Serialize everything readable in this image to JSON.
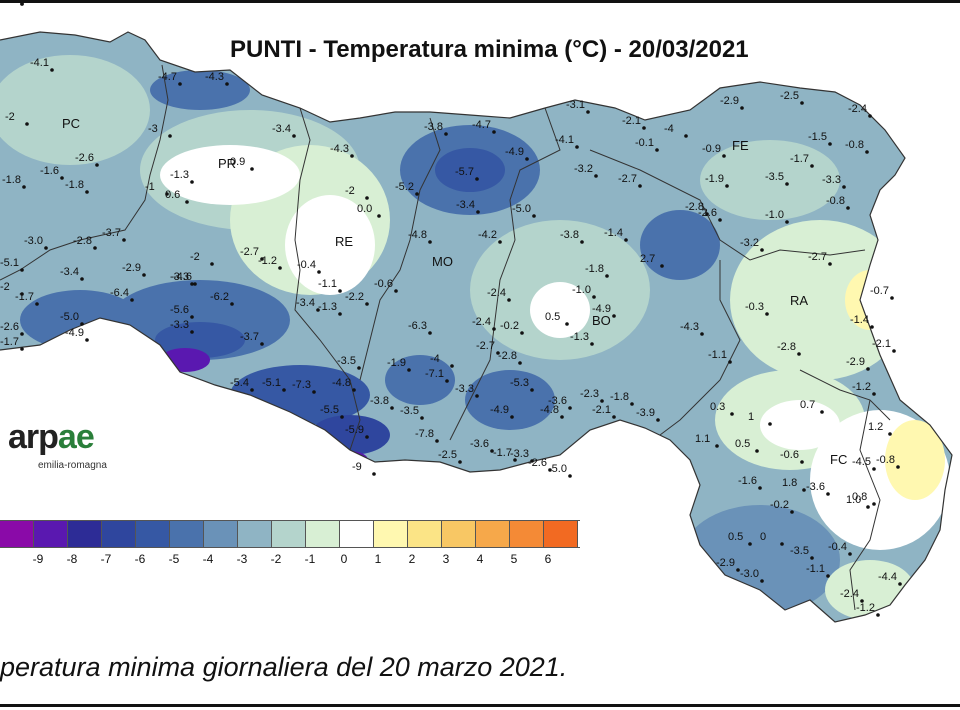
{
  "title": "PUNTI - Temperatura minima (°C) - 20/03/2021",
  "caption": "peratura minima giornaliera del 20 marzo 2021.",
  "logo": {
    "word_main": "arp",
    "word_accent": "ae",
    "subtitle": "emilia-romagna"
  },
  "legend": {
    "colors": [
      "#8a0aa8",
      "#5a18b0",
      "#2d2c96",
      "#2f469e",
      "#3658a4",
      "#4a72ac",
      "#6a92b8",
      "#8fb4c4",
      "#b4d4cc",
      "#d8efd4",
      "#ffffff",
      "#fff8b0",
      "#fbe486",
      "#f8c764",
      "#f6a84a",
      "#f48a36",
      "#f26a22"
    ],
    "labels": [
      {
        "text": "-9",
        "pos": 1
      },
      {
        "text": "-8",
        "pos": 2
      },
      {
        "text": "-7",
        "pos": 3
      },
      {
        "text": "-6",
        "pos": 4
      },
      {
        "text": "-5",
        "pos": 5
      },
      {
        "text": "-4",
        "pos": 6
      },
      {
        "text": "-3",
        "pos": 7
      },
      {
        "text": "-2",
        "pos": 8
      },
      {
        "text": "-1",
        "pos": 9
      },
      {
        "text": "0",
        "pos": 10
      },
      {
        "text": "1",
        "pos": 11
      },
      {
        "text": "2",
        "pos": 12
      },
      {
        "text": "3",
        "pos": 13
      },
      {
        "text": "4",
        "pos": 14
      },
      {
        "text": "5",
        "pos": 15
      },
      {
        "text": "6",
        "pos": 16
      }
    ]
  },
  "provinces": [
    {
      "code": "PC"
    },
    {
      "code": "PR"
    },
    {
      "code": "RE"
    },
    {
      "code": "MO"
    },
    {
      "code": "BO"
    },
    {
      "code": "FE"
    },
    {
      "code": "RA"
    },
    {
      "code": "FC"
    }
  ],
  "stations": [
    {
      "v": "-4.1"
    },
    {
      "v": "-4.7"
    },
    {
      "v": "-4.3"
    },
    {
      "v": "-3"
    },
    {
      "v": "-3.4"
    },
    {
      "v": "-2"
    },
    {
      "v": "-2.6"
    },
    {
      "v": "-1.6"
    },
    {
      "v": "-1.8"
    },
    {
      "v": "-1.8"
    },
    {
      "v": "0.9"
    },
    {
      "v": "-1.3"
    },
    {
      "v": "0.6"
    },
    {
      "v": "-1"
    },
    {
      "v": "-2"
    },
    {
      "v": "0.0"
    },
    {
      "v": "-4.3"
    },
    {
      "v": "-3.8"
    },
    {
      "v": "-4.7"
    },
    {
      "v": "-4.9"
    },
    {
      "v": "-5.7"
    },
    {
      "v": "-5.2"
    },
    {
      "v": "-3.4"
    },
    {
      "v": "-5.0"
    },
    {
      "v": "-4.1"
    },
    {
      "v": "-3.1"
    },
    {
      "v": "-3.2"
    },
    {
      "v": "-2.7"
    },
    {
      "v": "-2.1"
    },
    {
      "v": "-4"
    },
    {
      "v": "-0.1"
    },
    {
      "v": "-4.2"
    },
    {
      "v": "-4.8"
    },
    {
      "v": "-3.8"
    },
    {
      "v": "-1.4"
    },
    {
      "v": "-3.0"
    },
    {
      "v": "-2.8"
    },
    {
      "v": "-3.7"
    },
    {
      "v": "-5.1"
    },
    {
      "v": "-3.4"
    },
    {
      "v": "-2.9"
    },
    {
      "v": "-3.3"
    },
    {
      "v": "-2"
    },
    {
      "v": "-2.7"
    },
    {
      "v": "-1.2"
    },
    {
      "v": "-0.4"
    },
    {
      "v": "-1.1"
    },
    {
      "v": "-3.4"
    },
    {
      "v": "-1.3"
    },
    {
      "v": "-2.2"
    },
    {
      "v": "-0.6"
    },
    {
      "v": "-1.7"
    },
    {
      "v": "-6.4"
    },
    {
      "v": "-5.6"
    },
    {
      "v": "-6.2"
    },
    {
      "v": "-4.6"
    },
    {
      "v": "-3.3"
    },
    {
      "v": "-6.3"
    },
    {
      "v": "-2.6"
    },
    {
      "v": "-2.4"
    },
    {
      "v": "-0.2"
    },
    {
      "v": "-2.7"
    },
    {
      "v": "-2.8"
    },
    {
      "v": "-1.8"
    },
    {
      "v": "-1.0"
    },
    {
      "v": "0.5"
    },
    {
      "v": "-1.3"
    },
    {
      "v": "2.7"
    },
    {
      "v": "-4.3"
    },
    {
      "v": "-5.0"
    },
    {
      "v": "-4.9"
    },
    {
      "v": "-3.7"
    },
    {
      "v": "-1.9"
    },
    {
      "v": "-4"
    },
    {
      "v": "-7.1"
    },
    {
      "v": "-5.4"
    },
    {
      "v": "-5.1"
    },
    {
      "v": "-7.3"
    },
    {
      "v": "-3.5"
    },
    {
      "v": "-4.8"
    },
    {
      "v": "-3.8"
    },
    {
      "v": "-3.5"
    },
    {
      "v": "-3.3"
    },
    {
      "v": "-5.3"
    },
    {
      "v": "-4.9"
    },
    {
      "v": "-4.8"
    },
    {
      "v": "-3.6"
    },
    {
      "v": "-2.3"
    },
    {
      "v": "-2.1"
    },
    {
      "v": "-1.8"
    },
    {
      "v": "-3.9"
    },
    {
      "v": "-5.5"
    },
    {
      "v": "-5.9"
    },
    {
      "v": "-7.8"
    },
    {
      "v": "-2.5"
    },
    {
      "v": "-3.6"
    },
    {
      "v": "-1.7"
    },
    {
      "v": "-3.3"
    },
    {
      "v": "-2.6"
    },
    {
      "v": "-9"
    },
    {
      "v": "-5.0"
    },
    {
      "v": "-2.9"
    },
    {
      "v": "-2.5"
    },
    {
      "v": "-2.4"
    },
    {
      "v": "-1.5"
    },
    {
      "v": "-0.8"
    },
    {
      "v": "-0.9"
    },
    {
      "v": "-1.9"
    },
    {
      "v": "-3.5"
    },
    {
      "v": "-1.7"
    },
    {
      "v": "-3.3"
    },
    {
      "v": "-0.8"
    },
    {
      "v": "-1.0"
    },
    {
      "v": "-2.8"
    },
    {
      "v": "-2.6"
    },
    {
      "v": "-3.2"
    },
    {
      "v": "-2.7"
    },
    {
      "v": "-0.3"
    },
    {
      "v": "-1.1"
    },
    {
      "v": "-2.8"
    },
    {
      "v": "-2.9"
    },
    {
      "v": "-2.1"
    },
    {
      "v": "-1.2"
    },
    {
      "v": "-1.4"
    },
    {
      "v": "-0.7"
    },
    {
      "v": "0.3"
    },
    {
      "v": "1"
    },
    {
      "v": "0.7"
    },
    {
      "v": "1.2"
    },
    {
      "v": "0.8"
    },
    {
      "v": "1.1"
    },
    {
      "v": "0.5"
    },
    {
      "v": "-4.5"
    },
    {
      "v": "-0.8"
    },
    {
      "v": "-1.6"
    },
    {
      "v": "1.8"
    },
    {
      "v": "-3.6"
    },
    {
      "v": "-0.2"
    },
    {
      "v": "1.0"
    },
    {
      "v": "-0.6"
    },
    {
      "v": "0.5"
    },
    {
      "v": "0"
    },
    {
      "v": "-2.9"
    },
    {
      "v": "-3.0"
    },
    {
      "v": "-3.5"
    },
    {
      "v": "-1.1"
    },
    {
      "v": "-2.4"
    },
    {
      "v": "-4.4"
    },
    {
      "v": "-1.2"
    },
    {
      "v": "-0.4"
    },
    {
      "v": "-2"
    },
    {
      "v": "-2.4"
    },
    {
      "v": "-4.9"
    },
    {
      "v": "-1.7"
    },
    {
      "v": "-2.7"
    },
    {
      "v": "-2.1"
    }
  ]
}
